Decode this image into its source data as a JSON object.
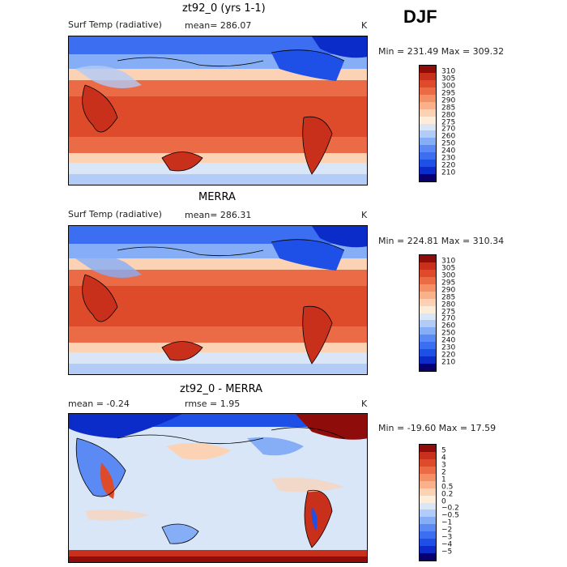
{
  "season": "DJF",
  "panels": [
    {
      "title": "zt92_0 (yrs 1-1)",
      "field": "Surf Temp (radiative)",
      "stat1": "mean= 286.07",
      "stat2": "",
      "units": "K",
      "minmax": "Min = 231.49 Max = 309.32",
      "colors": [
        "#08006e",
        "#0b2cc8",
        "#1e4fe6",
        "#3b6ef0",
        "#5b8af5",
        "#86aef7",
        "#b2cbf7",
        "#d8e6f8",
        "#fdecd9",
        "#fcd2b4",
        "#fab08a",
        "#f48f66",
        "#ea6b45",
        "#dd4b2b",
        "#c9301b",
        "#8e0d0a"
      ],
      "labels": [
        "210",
        "220",
        "230",
        "240",
        "250",
        "260",
        "270",
        "275",
        "280",
        "285",
        "290",
        "295",
        "300",
        "305",
        "310"
      ]
    },
    {
      "title": "MERRA",
      "field": "Surf Temp (radiative)",
      "stat1": "mean= 286.31",
      "stat2": "",
      "units": "K",
      "minmax": "Min = 224.81 Max = 310.34",
      "colors": [
        "#08006e",
        "#0b2cc8",
        "#1e4fe6",
        "#3b6ef0",
        "#5b8af5",
        "#86aef7",
        "#b2cbf7",
        "#d8e6f8",
        "#fdecd9",
        "#fcd2b4",
        "#fab08a",
        "#f48f66",
        "#ea6b45",
        "#dd4b2b",
        "#c9301b",
        "#8e0d0a"
      ],
      "labels": [
        "210",
        "220",
        "230",
        "240",
        "250",
        "260",
        "270",
        "275",
        "280",
        "285",
        "290",
        "295",
        "300",
        "305",
        "310"
      ]
    },
    {
      "title": "zt92_0 - MERRA",
      "field": "",
      "stat1": "mean =   -0.24",
      "stat2": "rmse =    1.95",
      "units": "K",
      "minmax": "Min = -19.60 Max =  17.59",
      "colors": [
        "#08006e",
        "#0b2cc8",
        "#1e4fe6",
        "#3b6ef0",
        "#5b8af5",
        "#86aef7",
        "#b2cbf7",
        "#d8e6f8",
        "#fdecd9",
        "#fcd2b4",
        "#fab08a",
        "#f48f66",
        "#ea6b45",
        "#dd4b2b",
        "#c9301b",
        "#8e0d0a"
      ],
      "labels": [
        "−5",
        "−4",
        "−3",
        "−2",
        "−1",
        "−0.5",
        "−0.2",
        "0",
        "0.2",
        "0.5",
        "1",
        "2",
        "3",
        "4",
        "5"
      ]
    }
  ],
  "chart_data": [
    {
      "type": "heatmap",
      "title": "zt92_0 (yrs 1-1)",
      "variable": "Surf Temp (radiative)",
      "units": "K",
      "mean": 286.07,
      "min": 231.49,
      "max": 309.32,
      "colorbar_levels": [
        210,
        220,
        230,
        240,
        250,
        260,
        270,
        275,
        280,
        285,
        290,
        295,
        300,
        305,
        310
      ]
    },
    {
      "type": "heatmap",
      "title": "MERRA",
      "variable": "Surf Temp (radiative)",
      "units": "K",
      "mean": 286.31,
      "min": 224.81,
      "max": 310.34,
      "colorbar_levels": [
        210,
        220,
        230,
        240,
        250,
        260,
        270,
        275,
        280,
        285,
        290,
        295,
        300,
        305,
        310
      ]
    },
    {
      "type": "heatmap",
      "title": "zt92_0 - MERRA",
      "units": "K",
      "mean": -0.24,
      "rmse": 1.95,
      "min": -19.6,
      "max": 17.59,
      "colorbar_levels": [
        -5,
        -4,
        -3,
        -2,
        -1,
        -0.5,
        -0.2,
        0,
        0.2,
        0.5,
        1,
        2,
        3,
        4,
        5
      ]
    }
  ]
}
